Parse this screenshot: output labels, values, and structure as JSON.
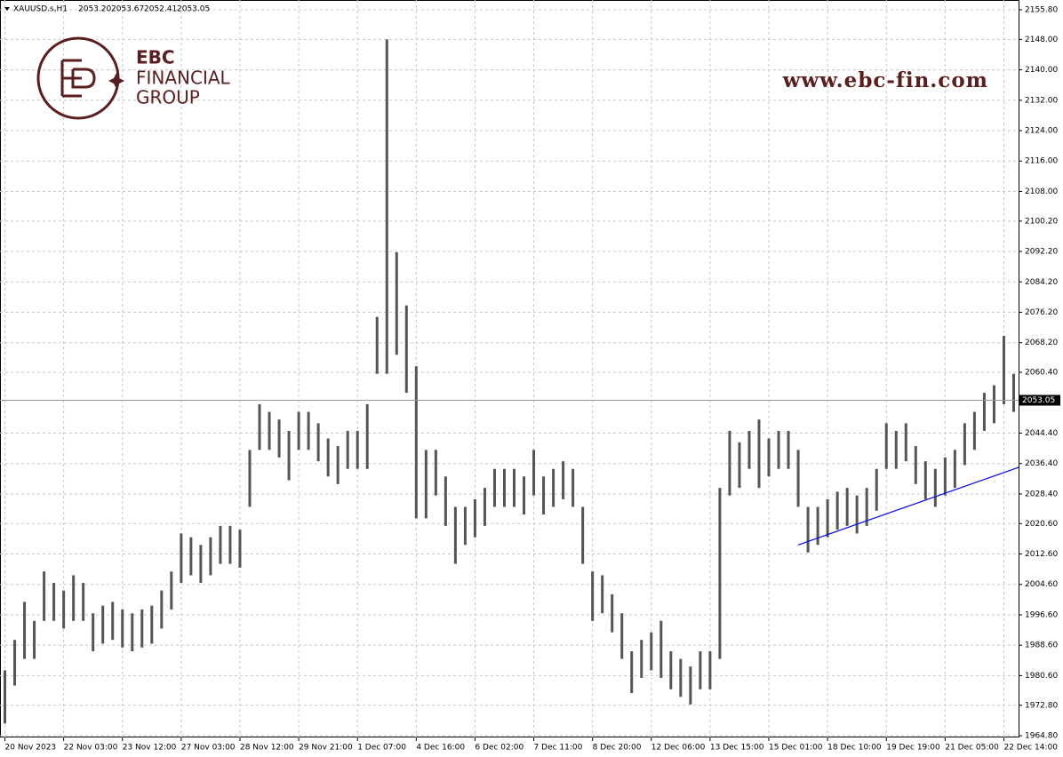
{
  "chart_data": {
    "type": "ohlc",
    "symbol": "XAUUSD.s,H1",
    "ohlc": [
      {
        "value": 2053.2,
        "label": "2053.20"
      },
      {
        "value": 2053.67,
        "label": "2053.67"
      },
      {
        "value": 2052.41,
        "label": "2052.41"
      },
      {
        "value": 2053.05,
        "label": "2053.05"
      }
    ],
    "brand": {
      "name": "EBC",
      "line1": "FINANCIAL",
      "line2": "GROUP",
      "url": "www.ebc-fin.com"
    },
    "color": "#555555",
    "categories": [
      "20 Nov 2023",
      null,
      null,
      null,
      null,
      null,
      "22 Nov 03:00",
      null,
      null,
      null,
      null,
      null,
      "23 Nov 12:00",
      null,
      null,
      null,
      null,
      null,
      "27 Nov 03:00",
      null,
      null,
      null,
      null,
      null,
      "28 Nov 12:00",
      null,
      null,
      null,
      null,
      null,
      "29 Nov 21:00",
      null,
      null,
      null,
      null,
      null,
      "1 Dec 07:00",
      null,
      null,
      null,
      null,
      null,
      "4 Dec 16:00",
      null,
      null,
      null,
      null,
      null,
      "6 Dec 02:00",
      null,
      null,
      null,
      null,
      null,
      "7 Dec 11:00",
      null,
      null,
      null,
      null,
      null,
      "8 Dec 20:00",
      null,
      null,
      null,
      null,
      null,
      "12 Dec 06:00",
      null,
      null,
      null,
      null,
      null,
      "13 Dec 15:00",
      null,
      null,
      null,
      null,
      null,
      "15 Dec 01:00",
      null,
      null,
      null,
      null,
      null,
      "18 Dec 10:00",
      null,
      null,
      null,
      null,
      null,
      "19 Dec 19:00",
      null,
      null,
      null,
      null,
      null,
      "21 Dec 05:00",
      null,
      null,
      null,
      null,
      null,
      "22 Dec 14:00",
      null
    ],
    "high": [
      1982,
      1990,
      2000,
      1995,
      2008,
      2005,
      2003,
      2007,
      2005,
      1997,
      1999,
      2000,
      1998,
      1997,
      1998,
      1999,
      2003,
      2008,
      2018,
      2017,
      2015,
      2017,
      2020,
      2020,
      2019,
      2040,
      2052,
      2050,
      2048,
      2045,
      2050,
      2050,
      2047,
      2043,
      2041,
      2045,
      2045,
      2052,
      2075,
      2148,
      2092,
      2078,
      2062,
      2040,
      2040,
      2033,
      2025,
      2025,
      2027,
      2030,
      2035,
      2035,
      2035,
      2033,
      2040,
      2033,
      2035,
      2037,
      2035,
      2025,
      2008,
      2007,
      2002,
      1997,
      1987,
      1990,
      1992,
      1995,
      1987,
      1985,
      1983,
      1987,
      1987,
      2030,
      2045,
      2042,
      2045,
      2048,
      2043,
      2045,
      2045,
      2040,
      2025,
      2025,
      2027,
      2029,
      2030,
      2028,
      2030,
      2035,
      2047,
      2045,
      2047,
      2041,
      2037,
      2035,
      2038,
      2040,
      2047,
      2050,
      2055,
      2057,
      2070,
      2060
    ],
    "low": [
      1968,
      1978,
      1985,
      1985,
      1995,
      1995,
      1993,
      1995,
      1995,
      1987,
      1989,
      1990,
      1988,
      1987,
      1988,
      1989,
      1993,
      1998,
      2005,
      2007,
      2005,
      2007,
      2010,
      2010,
      2009,
      2025,
      2040,
      2040,
      2038,
      2032,
      2040,
      2040,
      2037,
      2033,
      2031,
      2035,
      2035,
      2035,
      2060,
      2060,
      2065,
      2055,
      2022,
      2022,
      2028,
      2020,
      2010,
      2015,
      2017,
      2020,
      2025,
      2025,
      2025,
      2023,
      2028,
      2023,
      2025,
      2027,
      2025,
      2010,
      1995,
      1997,
      1992,
      1985,
      1976,
      1980,
      1982,
      1980,
      1977,
      1975,
      1973,
      1977,
      1977,
      1985,
      2028,
      2030,
      2035,
      2030,
      2033,
      2035,
      2035,
      2025,
      2013,
      2015,
      2017,
      2019,
      2020,
      2018,
      2020,
      2024,
      2035,
      2035,
      2037,
      2031,
      2027,
      2025,
      2028,
      2030,
      2036,
      2040,
      2045,
      2047,
      2052,
      2050
    ],
    "last_price": 2053.05,
    "trendline": {
      "x": [
        81.5,
        104
      ],
      "y": [
        2015.0,
        2035.4
      ],
      "color": "#0000ff"
    },
    "ylim": [
      1964.33,
      2158.37
    ],
    "yticks": [
      {
        "value": 2155.8,
        "label": "2155.80"
      },
      {
        "value": 2148,
        "label": "2148.00"
      },
      {
        "value": 2140,
        "label": "2140.00"
      },
      {
        "value": 2132,
        "label": "2132.00"
      },
      {
        "value": 2124,
        "label": "2124.00"
      },
      {
        "value": 2116,
        "label": "2116.00"
      },
      {
        "value": 2108,
        "label": "2108.00"
      },
      {
        "value": 2100.2,
        "label": "2100.20"
      },
      {
        "value": 2092.2,
        "label": "2092.20"
      },
      {
        "value": 2084.2,
        "label": "2084.20"
      },
      {
        "value": 2076.2,
        "label": "2076.20"
      },
      {
        "value": 2068.2,
        "label": "2068.20"
      },
      {
        "value": 2060.4,
        "label": "2060.40"
      },
      {
        "value": 2044.4,
        "label": "2044.40"
      },
      {
        "value": 2036.4,
        "label": "2036.40"
      },
      {
        "value": 2028.4,
        "label": "2028.40"
      },
      {
        "value": 2020.6,
        "label": "2020.60"
      },
      {
        "value": 2012.6,
        "label": "2012.60"
      },
      {
        "value": 2004.6,
        "label": "2004.60"
      },
      {
        "value": 1996.6,
        "label": "1996.60"
      },
      {
        "value": 1988.6,
        "label": "1988.60"
      },
      {
        "value": 1980.6,
        "label": "1980.60"
      },
      {
        "value": 1972.8,
        "label": "1972.80"
      },
      {
        "value": 1964.8,
        "label": "1964.80"
      }
    ],
    "grid": true
  }
}
